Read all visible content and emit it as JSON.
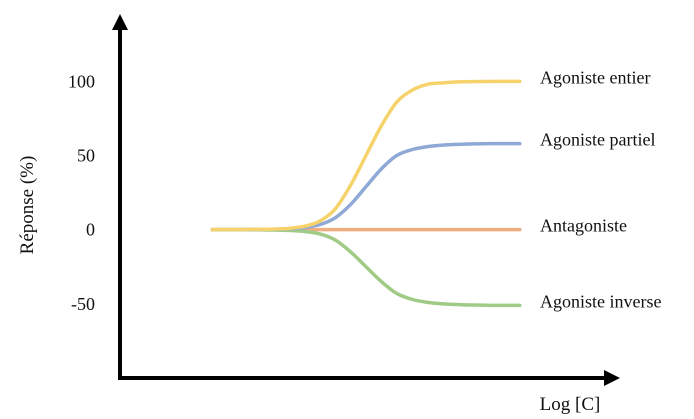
{
  "chart_data": {
    "type": "line",
    "xlabel": "Log [C]",
    "ylabel": "Réponse (%)",
    "yticks": [
      100,
      50,
      0,
      -50
    ],
    "y_tick_labels": [
      "100",
      "50",
      "0",
      "-50"
    ],
    "ylim": [
      -100,
      140
    ],
    "xlim": [
      -8,
      8
    ],
    "grid": false,
    "legend": "direct labels at right end of each curve",
    "x": [
      -5,
      -4.5,
      -4,
      -3.5,
      -3,
      -2.5,
      -2,
      -1.5,
      -1,
      -0.5,
      0,
      0.5,
      1,
      1.5,
      2,
      2.5,
      3,
      3.5,
      4,
      4.5,
      5
    ],
    "series": [
      {
        "name": "Agoniste entier",
        "color": "#f5d36a",
        "values": [
          0,
          0,
          0.1,
          0.2,
          0.4,
          0.9,
          2.3,
          5.8,
          14,
          30,
          50,
          70,
          86,
          94,
          98,
          99,
          99.6,
          99.8,
          99.9,
          100,
          100
        ]
      },
      {
        "name": "Agoniste partiel",
        "color": "#8fa9d6",
        "values": [
          0,
          0,
          0.1,
          0.1,
          0.3,
          0.6,
          1.4,
          3.4,
          8,
          17,
          29,
          41,
          50,
          54,
          56,
          57,
          57.5,
          57.8,
          58,
          58,
          58
        ]
      },
      {
        "name": "Antagoniste",
        "color": "#efae82",
        "values": [
          0,
          0,
          0,
          0,
          0,
          0,
          0,
          0,
          0,
          0,
          0,
          0,
          0,
          0,
          0,
          0,
          0,
          0,
          0,
          0,
          0
        ]
      },
      {
        "name": "Agoniste inverse",
        "color": "#9fcb86",
        "values": [
          0,
          0,
          0,
          -0.1,
          -0.2,
          -0.5,
          -1.2,
          -2.9,
          -7,
          -15,
          -25,
          -35,
          -43,
          -47,
          -49,
          -50,
          -50.5,
          -50.8,
          -51,
          -51,
          -51
        ]
      }
    ]
  }
}
